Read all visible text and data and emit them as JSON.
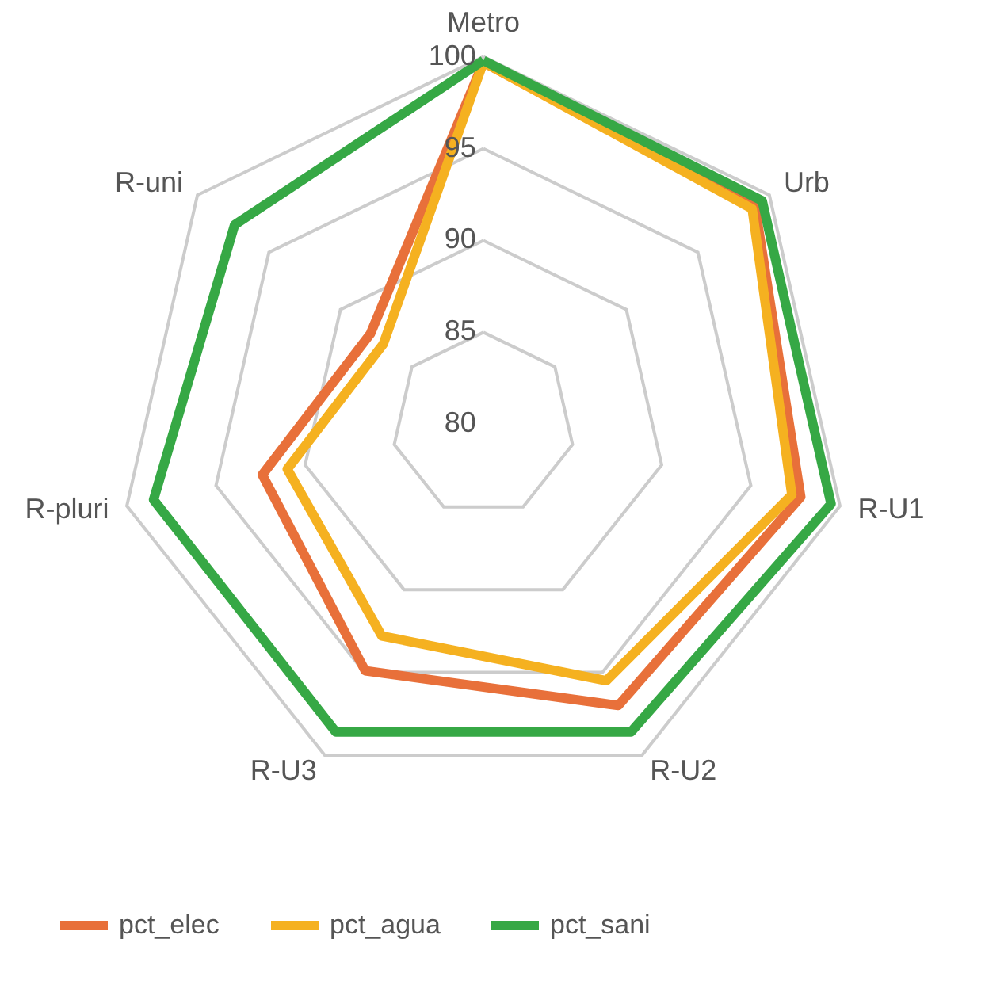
{
  "chart_data": {
    "type": "radar",
    "categories": [
      "Metro",
      "Urb",
      "R-U1",
      "R-U2",
      "R-U3",
      "R-pluri",
      "R-uni"
    ],
    "series": [
      {
        "name": "pct_elec",
        "color": "#e8703a",
        "values": [
          99.7,
          99.0,
          97.8,
          97.0,
          94.9,
          92.4,
          87.9
        ]
      },
      {
        "name": "pct_agua",
        "color": "#f5b120",
        "values": [
          99.7,
          98.8,
          97.3,
          95.5,
          92.8,
          91.0,
          87.0
        ]
      },
      {
        "name": "pct_sani",
        "color": "#36a845",
        "values": [
          99.8,
          99.5,
          99.5,
          98.6,
          98.6,
          98.5,
          97.4
        ]
      }
    ],
    "ylim": [
      80,
      100
    ],
    "yticks": [
      80,
      85,
      90,
      95,
      100
    ],
    "grid": true,
    "legend": "bottom"
  }
}
